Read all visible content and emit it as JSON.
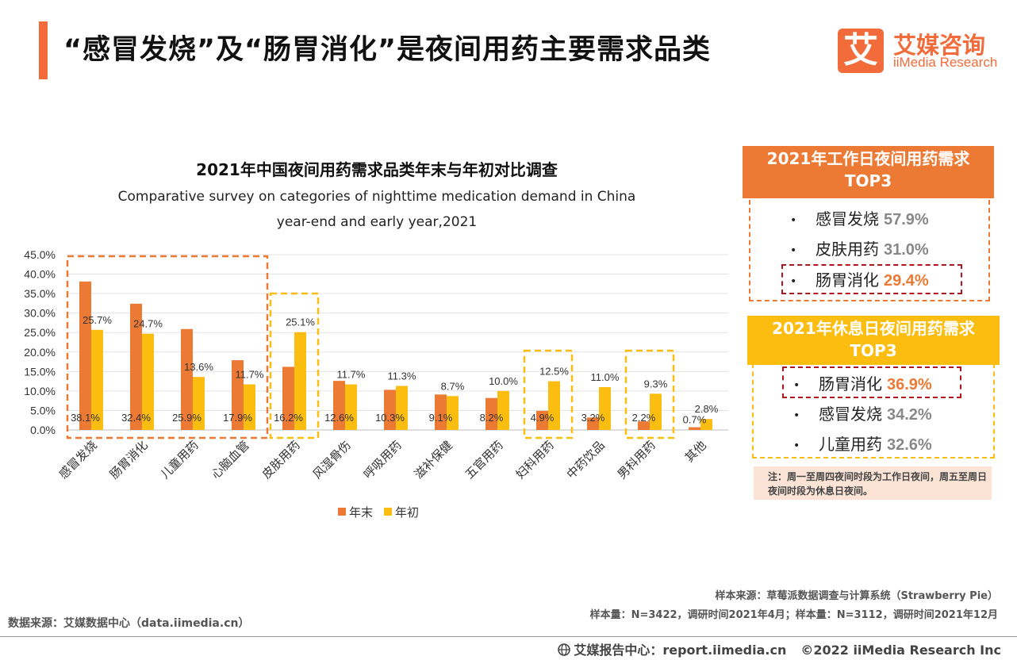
{
  "header": {
    "title": "“感冒发烧”及“肠胃消化”是夜间用药主要需求品类",
    "logo_mark": "艾",
    "logo_cn": "艾媒咨询",
    "logo_en": "iiMedia Research"
  },
  "chart_data": {
    "type": "bar",
    "title": "2021年中国夜间用药需求品类年末与年初对比调查",
    "subtitle_line1": "Comparative survey on categories of nighttime medication demand in China",
    "subtitle_line2": "year-end and early year,2021",
    "categories": [
      "感冒发烧",
      "肠胃消化",
      "儿童用药",
      "心脑血管",
      "皮肤用药",
      "风湿骨伤",
      "呼吸用药",
      "滋补保健",
      "五官用药",
      "妇科用药",
      "中药饮品",
      "男科用药",
      "其他"
    ],
    "series": [
      {
        "name": "年末",
        "color": "#ec7a35",
        "values": [
          38.1,
          32.4,
          25.9,
          17.9,
          16.2,
          12.6,
          10.3,
          9.1,
          8.2,
          4.9,
          3.2,
          2.2,
          0.7
        ]
      },
      {
        "name": "年初",
        "color": "#fbbd10",
        "values": [
          25.7,
          24.7,
          13.6,
          11.7,
          25.1,
          11.7,
          11.3,
          8.7,
          10.0,
          12.5,
          11.0,
          9.3,
          2.8
        ]
      }
    ],
    "ylim": [
      0,
      45
    ],
    "yticks": [
      "0.0%",
      "5.0%",
      "10.0%",
      "15.0%",
      "20.0%",
      "25.0%",
      "30.0%",
      "35.0%",
      "40.0%",
      "45.0%"
    ],
    "grid": true,
    "legend_position": "bottom",
    "highlight_groups": [
      {
        "from": 0,
        "to": 3,
        "color": "#ec7a35"
      },
      {
        "from": 4,
        "to": 4,
        "color": "#fbbd10"
      },
      {
        "from": 9,
        "to": 9,
        "color": "#fbbd10"
      },
      {
        "from": 11,
        "to": 11,
        "color": "#fbbd10"
      }
    ]
  },
  "workday_panel": {
    "title_line1": "2021年工作日夜间用药需求",
    "title_line2": "TOP3",
    "items": [
      {
        "bullet": "•",
        "label": "感冒发烧",
        "value": "57.9%",
        "highlight": false
      },
      {
        "bullet": "•",
        "label": "皮肤用药",
        "value": "31.0%",
        "highlight": false
      },
      {
        "bullet": "•",
        "label": "肠胃消化",
        "value": "29.4%",
        "highlight": true
      }
    ]
  },
  "restday_panel": {
    "title_line1": "2021年休息日夜间用药需求",
    "title_line2": "TOP3",
    "items": [
      {
        "bullet": "•",
        "label": "肠胃消化",
        "value": "36.9%",
        "highlight": true
      },
      {
        "bullet": "•",
        "label": "感冒发烧",
        "value": "34.2%",
        "highlight": false
      },
      {
        "bullet": "•",
        "label": "儿童用药",
        "value": "32.6%",
        "highlight": false
      }
    ]
  },
  "note": "注：周一至周四夜间时段为工作日夜间，周五至周日夜间时段为休息日夜间。",
  "sources": {
    "sample_source": "样本来源：草莓派数据调查与计算系统（Strawberry Pie）",
    "sample_size": "样本量：N=3422，调研时间2021年4月；样本量：N=3112，调研时间2021年12月",
    "data_source": "数据来源：艾媒数据中心（data.iimedia.cn）"
  },
  "footer": {
    "globe_icon": "globe-icon",
    "report": "艾媒报告中心：report.iimedia.cn",
    "copyright": "©2022  iiMedia Research Inc"
  }
}
